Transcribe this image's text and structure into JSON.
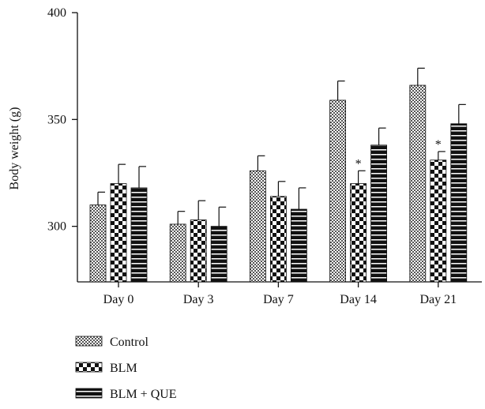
{
  "chart_data": {
    "type": "bar",
    "ylabel": "Body weight (g)",
    "ylim": [
      274,
      400
    ],
    "yticks": [
      300,
      350,
      400
    ],
    "categories": [
      "Day 0",
      "Day 3",
      "Day 7",
      "Day 14",
      "Day 21"
    ],
    "series": [
      {
        "name": "Control",
        "pattern": "checker-fine",
        "values": [
          310,
          301,
          326,
          359,
          366
        ],
        "errors": [
          6,
          6,
          7,
          9,
          8
        ],
        "significance": [
          "",
          "",
          "",
          "",
          ""
        ]
      },
      {
        "name": "BLM",
        "pattern": "checker-coarse",
        "values": [
          320,
          303,
          314,
          320,
          331
        ],
        "errors": [
          9,
          9,
          7,
          6,
          4
        ],
        "significance": [
          "",
          "",
          "",
          "*",
          "*"
        ]
      },
      {
        "name": "BLM + QUE",
        "pattern": "horizontal-stripes",
        "values": [
          318,
          300,
          308,
          338,
          348
        ],
        "errors": [
          10,
          9,
          10,
          8,
          9
        ],
        "significance": [
          "",
          "",
          "",
          "",
          ""
        ]
      }
    ],
    "legend_position": "bottom-left",
    "grid": false
  }
}
